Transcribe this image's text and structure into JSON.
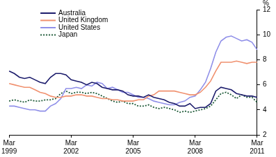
{
  "chart_data": {
    "type": "line",
    "ylabel": "%",
    "categories": [
      "Mar 1999",
      null,
      null,
      null,
      null,
      null,
      null,
      null,
      null,
      null,
      null,
      null,
      "Mar 2002",
      null,
      null,
      null,
      null,
      null,
      null,
      null,
      null,
      null,
      null,
      null,
      "Mar 2005",
      null,
      null,
      null,
      null,
      null,
      null,
      null,
      null,
      null,
      null,
      null,
      "Mar 2008",
      null,
      null,
      null,
      null,
      null,
      null,
      null,
      null,
      null,
      null,
      null,
      "Mar 2011"
    ],
    "series": [
      {
        "name": "Australia",
        "color": "#1b1b6b",
        "line_style": "solid",
        "values": [
          7.1,
          6.9,
          6.6,
          6.5,
          6.6,
          6.4,
          6.2,
          6.1,
          6.6,
          6.9,
          6.9,
          6.8,
          6.4,
          6.3,
          6.2,
          6.0,
          6.2,
          6.1,
          5.8,
          5.7,
          5.6,
          5.6,
          5.5,
          5.2,
          5.1,
          5.1,
          5.0,
          5.2,
          5.0,
          4.9,
          4.8,
          4.6,
          4.5,
          4.3,
          4.3,
          4.5,
          4.1,
          4.2,
          4.2,
          4.5,
          5.5,
          5.8,
          5.7,
          5.6,
          5.3,
          5.2,
          5.1,
          5.1,
          5.0
        ]
      },
      {
        "name": "United Kingdom",
        "color": "#f0906e",
        "line_style": "solid",
        "values": [
          6.1,
          6.0,
          5.9,
          5.8,
          5.8,
          5.6,
          5.4,
          5.3,
          5.1,
          5.0,
          5.0,
          5.1,
          5.1,
          5.2,
          5.2,
          5.1,
          5.1,
          5.0,
          4.9,
          4.9,
          4.8,
          4.8,
          4.7,
          4.7,
          4.7,
          4.8,
          4.8,
          5.1,
          5.2,
          5.5,
          5.5,
          5.5,
          5.5,
          5.4,
          5.3,
          5.2,
          5.2,
          5.4,
          5.8,
          6.3,
          7.1,
          7.8,
          7.8,
          7.8,
          7.9,
          7.8,
          7.7,
          7.8,
          7.8
        ]
      },
      {
        "name": "United States",
        "color": "#8f8fe8",
        "line_style": "solid",
        "values": [
          4.3,
          4.3,
          4.2,
          4.1,
          4.0,
          4.0,
          3.9,
          3.9,
          4.3,
          4.5,
          4.9,
          5.7,
          5.7,
          5.8,
          5.7,
          6.0,
          5.9,
          6.2,
          6.1,
          5.7,
          5.8,
          5.6,
          5.4,
          5.4,
          5.2,
          5.0,
          5.0,
          4.9,
          4.7,
          4.6,
          4.5,
          4.4,
          4.4,
          4.6,
          4.7,
          5.0,
          5.1,
          5.6,
          6.2,
          7.3,
          8.6,
          9.5,
          9.8,
          9.9,
          9.7,
          9.5,
          9.6,
          9.4,
          8.8
        ]
      },
      {
        "name": "Japan",
        "color": "#1e5a38",
        "line_style": "dotted",
        "values": [
          4.7,
          4.8,
          4.7,
          4.6,
          4.8,
          4.7,
          4.7,
          4.8,
          4.8,
          4.9,
          5.3,
          5.5,
          5.3,
          5.4,
          5.4,
          5.3,
          5.4,
          5.3,
          5.1,
          4.9,
          4.7,
          4.6,
          4.7,
          4.5,
          4.5,
          4.3,
          4.3,
          4.4,
          4.2,
          4.1,
          4.2,
          4.1,
          4.0,
          3.8,
          3.9,
          3.8,
          3.9,
          4.0,
          4.1,
          4.3,
          4.8,
          5.3,
          5.4,
          5.2,
          4.9,
          5.2,
          5.0,
          5.0,
          4.6
        ]
      }
    ],
    "ylim": [
      2,
      12
    ],
    "yticks": [
      2,
      4,
      6,
      8,
      10,
      12
    ],
    "grid": false,
    "legend": "top left"
  }
}
